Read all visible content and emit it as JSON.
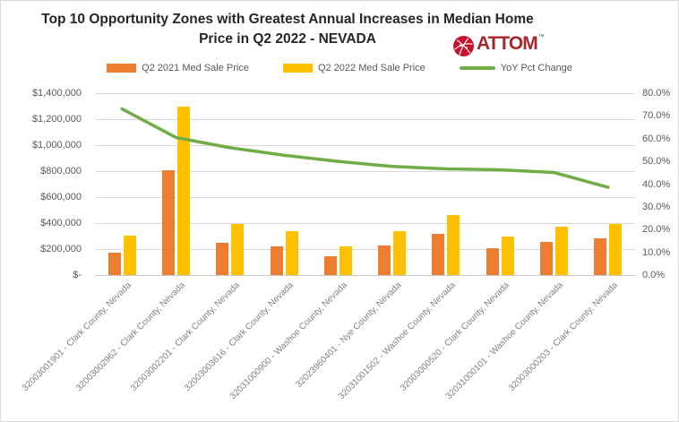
{
  "header": {
    "title_line1": "Top 10 Opportunity Zones with Greatest Annual Increases in Median Home",
    "title_line2": "Price in Q2 2022 - NEVADA",
    "logo_text": "ATTOM",
    "logo_tm": "™"
  },
  "colors": {
    "bar_2021": "#ED7D31",
    "bar_2022": "#FFC000",
    "line_yoy": "#70AD47",
    "gridline": "#D9D9D9",
    "axis_text": "#595959",
    "x_label_text": "#808080",
    "title_text": "#262626",
    "logo_red": "#C8102E"
  },
  "chart_data": {
    "type": "bar",
    "title": "Top 10 Opportunity Zones with Greatest Annual Increases in Median Home Price in Q2 2022 - NEVADA",
    "grid": true,
    "legend_position": "top",
    "categories": [
      "32003001901 - Clark County, Nevada",
      "32003002962 - Clark County, Nevada",
      "32003002201 - Clark County, Nevada",
      "32003003616 - Clark County, Nevada",
      "32031000900 - Washoe County, Nevada",
      "32023960401 - Nye County, Nevada",
      "32031001502 - Washoe County, Nevada",
      "32003000520 - Clark County, Nevada",
      "32031000101 - Washoe County, Nevada",
      "32003000203 - Clark County, Nevada"
    ],
    "series": [
      {
        "name": "Q2 2021 Med Sale Price",
        "type": "bar",
        "axis": "left",
        "color": "#ED7D31",
        "values": [
          175000,
          810000,
          250000,
          220000,
          148000,
          228000,
          315000,
          205000,
          255000,
          285000
        ]
      },
      {
        "name": "Q2 2022 Med Sale Price",
        "type": "bar",
        "axis": "left",
        "color": "#FFC000",
        "values": [
          303000,
          1300000,
          390000,
          336000,
          222000,
          337000,
          462000,
          300000,
          370000,
          395000
        ]
      },
      {
        "name": "YoY Pct Change",
        "type": "line",
        "axis": "right",
        "color": "#70AD47",
        "values": [
          73.1,
          60.5,
          56.0,
          52.7,
          50.0,
          47.8,
          46.7,
          46.3,
          45.1,
          38.6
        ]
      }
    ],
    "left_axis": {
      "min": 0,
      "max": 1400000,
      "step": 200000,
      "tick_labels": [
        "$-",
        "$200,000",
        "$400,000",
        "$600,000",
        "$800,000",
        "$1,000,000",
        "$1,200,000",
        "$1,400,000"
      ]
    },
    "right_axis": {
      "min": 0,
      "max": 80,
      "step": 10,
      "tick_labels": [
        "0.0%",
        "10.0%",
        "20.0%",
        "30.0%",
        "40.0%",
        "50.0%",
        "60.0%",
        "70.0%",
        "80.0%"
      ]
    }
  }
}
